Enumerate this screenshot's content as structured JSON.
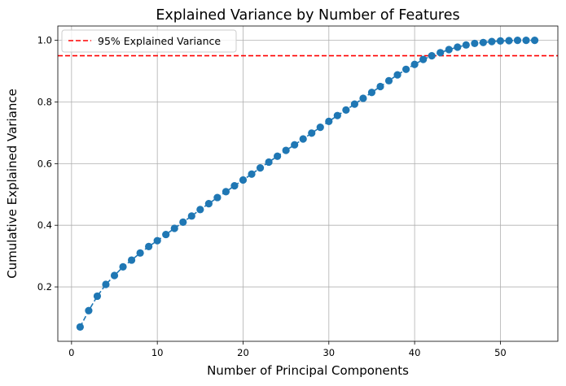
{
  "chart_data": {
    "type": "line",
    "title": "Explained Variance by Number of Features",
    "xlabel": "Number of Principal Components",
    "ylabel": "Cumulative Explained Variance",
    "xlim": [
      -1.6,
      56.7
    ],
    "ylim": [
      0.0235,
      1.0465
    ],
    "xticks": [
      0,
      10,
      20,
      30,
      40,
      50
    ],
    "yticks": [
      0.2,
      0.4,
      0.6,
      0.8,
      1.0
    ],
    "ytick_labels": [
      "0.2",
      "0.4",
      "0.6",
      "0.8",
      "1.0"
    ],
    "grid": true,
    "legend_position": "top-left",
    "series": [
      {
        "color": "#1f77b4",
        "line_style": "dashed",
        "marker": "circle",
        "x": [
          1,
          2,
          3,
          4,
          5,
          6,
          7,
          8,
          9,
          10,
          11,
          12,
          13,
          14,
          15,
          16,
          17,
          18,
          19,
          20,
          21,
          22,
          23,
          24,
          25,
          26,
          27,
          28,
          29,
          30,
          31,
          32,
          33,
          34,
          35,
          36,
          37,
          38,
          39,
          40,
          41,
          42,
          43,
          44,
          45,
          46,
          47,
          48,
          49,
          50,
          51,
          52,
          53,
          54
        ],
        "y": [
          0.07,
          0.123,
          0.17,
          0.208,
          0.237,
          0.265,
          0.287,
          0.31,
          0.331,
          0.35,
          0.37,
          0.39,
          0.41,
          0.43,
          0.451,
          0.47,
          0.49,
          0.509,
          0.528,
          0.547,
          0.566,
          0.586,
          0.605,
          0.624,
          0.643,
          0.661,
          0.68,
          0.699,
          0.718,
          0.737,
          0.756,
          0.774,
          0.793,
          0.812,
          0.831,
          0.85,
          0.869,
          0.888,
          0.906,
          0.922,
          0.938,
          0.95,
          0.96,
          0.97,
          0.978,
          0.985,
          0.99,
          0.993,
          0.996,
          0.998,
          0.999,
          1.0,
          1.0,
          1.0
        ]
      }
    ],
    "threshold": {
      "label": "95% Explained Variance",
      "value": 0.95,
      "color": "#ff0000",
      "line_style": "dashed"
    }
  }
}
